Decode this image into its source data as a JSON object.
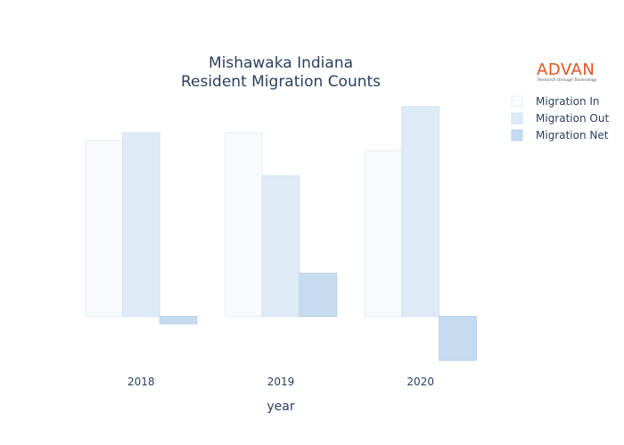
{
  "chart_data": {
    "type": "bar",
    "title_lines": [
      "Mishawaka Indiana",
      "Resident Migration Counts"
    ],
    "xlabel": "year",
    "ylabel": "",
    "categories": [
      "2018",
      "2019",
      "2020"
    ],
    "series": [
      {
        "name": "Migration In",
        "values": [
          2000,
          2085,
          1880
        ],
        "color": "#f7fbff",
        "stroke": "#e6eef8"
      },
      {
        "name": "Migration Out",
        "values": [
          2085,
          1595,
          2380
        ],
        "color": "#deebf7",
        "stroke": "#d2e2f3"
      },
      {
        "name": "Migration Net",
        "values": [
          -85,
          490,
          -500
        ],
        "color": "#c6dbef",
        "stroke": "#b9d1ea"
      }
    ],
    "ylim": [
      -550,
      2580
    ],
    "grid": false,
    "legend_position": "top-right"
  },
  "logo": {
    "name": "ADVAN",
    "tagline": "Research through Technology"
  }
}
